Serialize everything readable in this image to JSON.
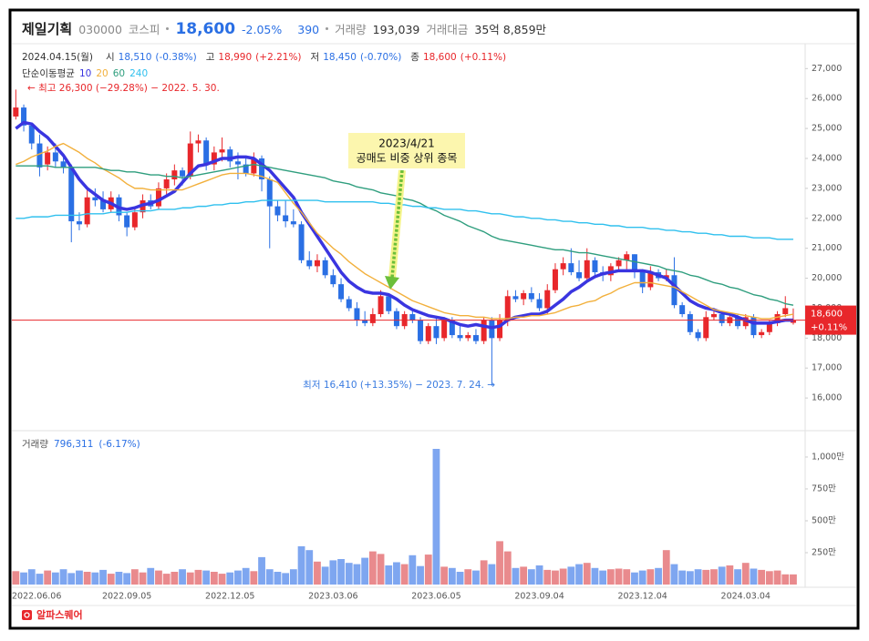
{
  "header": {
    "name": "제일기획",
    "code": "030000",
    "market": "코스피",
    "price": "18,600",
    "change_pct": "-2.05%",
    "change": "390",
    "volume_label": "거래량",
    "volume": "193,039",
    "amount_label": "거래대금",
    "amount": "35억 8,859만"
  },
  "info": {
    "date": "2024.04.15(월)",
    "items": [
      {
        "label": "시",
        "value": "18,510",
        "change": "(-0.38%)",
        "color": "#2a6fe4"
      },
      {
        "label": "고",
        "value": "18,990",
        "change": "(+2.21%)",
        "color": "#e8272b"
      },
      {
        "label": "저",
        "value": "18,450",
        "change": "(-0.70%)",
        "color": "#2a6fe4"
      },
      {
        "label": "종",
        "value": "18,600",
        "change": "(+0.11%)",
        "color": "#e8272b"
      }
    ]
  },
  "footer": {
    "brand": "알파스퀘어"
  },
  "chart_data": [
    {
      "type": "candlestick",
      "categories": [
        null,
        "2022.06.06",
        null,
        null,
        null,
        null,
        null,
        null,
        null,
        null,
        null,
        null,
        null,
        null,
        "2022.09.05",
        null,
        null,
        null,
        null,
        null,
        null,
        null,
        null,
        null,
        null,
        null,
        null,
        "2022.12.05",
        null,
        null,
        null,
        null,
        null,
        null,
        null,
        null,
        null,
        null,
        null,
        null,
        "2023.03.06",
        null,
        null,
        null,
        null,
        null,
        null,
        null,
        null,
        null,
        null,
        null,
        null,
        "2023.06.05",
        null,
        null,
        null,
        null,
        null,
        null,
        null,
        null,
        null,
        null,
        null,
        null,
        "2023.09.04",
        null,
        null,
        null,
        null,
        null,
        null,
        null,
        null,
        null,
        null,
        null,
        null,
        "2023.12.04",
        null,
        null,
        null,
        null,
        null,
        null,
        null,
        null,
        null,
        null,
        null,
        null,
        "2024.03.04",
        null,
        null,
        null,
        null,
        null,
        null
      ],
      "open": [
        25400,
        25700,
        25100,
        24500,
        23800,
        24200,
        23900,
        23700,
        21900,
        21800,
        22700,
        22600,
        22300,
        22700,
        22100,
        21700,
        22200,
        22600,
        22400,
        23000,
        23300,
        23600,
        23400,
        24500,
        24600,
        23800,
        24200,
        24300,
        23900,
        23800,
        23500,
        24000,
        23300,
        22400,
        22100,
        21900,
        21800,
        20600,
        20400,
        20600,
        20100,
        19800,
        19300,
        19000,
        18600,
        18500,
        18800,
        19400,
        18900,
        18400,
        18800,
        18600,
        17900,
        18400,
        18000,
        18600,
        18100,
        18000,
        18100,
        17900,
        18600,
        18000,
        18600,
        19400,
        19300,
        19500,
        19300,
        19000,
        19600,
        20300,
        20500,
        20200,
        20000,
        20600,
        20200,
        20100,
        20400,
        20600,
        20800,
        20200,
        19700,
        20200,
        20000,
        20100,
        19100,
        18800,
        18200,
        18000,
        18700,
        18800,
        18500,
        18700,
        18400,
        18700,
        18100,
        18200,
        18500,
        18800,
        18510
      ],
      "high": [
        26300,
        25800,
        25200,
        24800,
        24400,
        24500,
        24100,
        23800,
        22200,
        23000,
        23000,
        22900,
        22900,
        22800,
        22200,
        22300,
        22800,
        22800,
        23200,
        23500,
        23800,
        23700,
        24900,
        24800,
        24700,
        24400,
        24700,
        24400,
        24200,
        24000,
        24200,
        24100,
        23400,
        22600,
        22600,
        22300,
        21900,
        20900,
        20800,
        20700,
        20300,
        20000,
        19400,
        19200,
        18900,
        19000,
        19600,
        19500,
        19000,
        18900,
        18900,
        18700,
        18500,
        18700,
        18700,
        18700,
        18400,
        18200,
        18300,
        18700,
        18700,
        18800,
        19600,
        19600,
        19600,
        19700,
        19500,
        19800,
        20500,
        20700,
        21000,
        20600,
        21000,
        20700,
        20400,
        20500,
        20700,
        20900,
        20800,
        20300,
        20400,
        20300,
        20300,
        20700,
        19200,
        18900,
        18300,
        18900,
        19000,
        18900,
        18800,
        18800,
        18800,
        18800,
        18300,
        18600,
        18900,
        19400,
        18990
      ],
      "low": [
        25300,
        24900,
        24300,
        23400,
        23600,
        23700,
        23500,
        21200,
        21600,
        21700,
        22400,
        22200,
        22200,
        21900,
        21400,
        21600,
        22000,
        22300,
        22300,
        22700,
        23100,
        23100,
        23300,
        24200,
        23600,
        23600,
        23900,
        23700,
        23300,
        23400,
        23400,
        22900,
        21000,
        21900,
        21700,
        21700,
        20500,
        20300,
        20200,
        20000,
        19700,
        19200,
        18900,
        18400,
        18400,
        18400,
        18700,
        18800,
        18300,
        18300,
        18500,
        17800,
        17800,
        17800,
        17900,
        18000,
        17900,
        17900,
        17800,
        17800,
        16410,
        17900,
        18400,
        19200,
        19100,
        19200,
        18900,
        18800,
        19500,
        20100,
        20100,
        19900,
        19900,
        20000,
        19900,
        19900,
        20200,
        20300,
        20000,
        19500,
        19600,
        19900,
        19900,
        19000,
        18700,
        18100,
        17900,
        17900,
        18600,
        18400,
        18400,
        18300,
        18300,
        18000,
        18000,
        18100,
        18400,
        18700,
        18450
      ],
      "close": [
        25700,
        25100,
        24500,
        23700,
        24200,
        23900,
        23700,
        21900,
        21800,
        22700,
        22600,
        22300,
        22700,
        22100,
        21700,
        22200,
        22600,
        22400,
        23000,
        23300,
        23600,
        23400,
        24500,
        24600,
        23800,
        24200,
        24300,
        23900,
        23800,
        23500,
        24000,
        23300,
        22400,
        22100,
        21900,
        21800,
        20600,
        20400,
        20600,
        20100,
        19800,
        19300,
        19000,
        18600,
        18500,
        18800,
        19400,
        18900,
        18400,
        18800,
        18600,
        17900,
        18400,
        18000,
        18600,
        18100,
        18000,
        18100,
        17900,
        18600,
        18000,
        18600,
        19400,
        19300,
        19500,
        19300,
        19000,
        19600,
        20300,
        20500,
        20200,
        20000,
        20600,
        20200,
        20100,
        20400,
        20600,
        20800,
        20200,
        19700,
        20200,
        20000,
        20100,
        19100,
        18800,
        18200,
        18000,
        18700,
        18800,
        18500,
        18700,
        18400,
        18700,
        18100,
        18200,
        18500,
        18800,
        19000,
        18600
      ],
      "up_color": "#e8272b",
      "down_color": "#2a6fe4",
      "ylim": [
        15000,
        27770
      ],
      "yticks": [
        {
          "value": 16000,
          "label": "16,000"
        },
        {
          "value": 17000,
          "label": "17,000"
        },
        {
          "value": 18000,
          "label": "18,000"
        },
        {
          "value": 19000,
          "label": "19,000"
        },
        {
          "value": 20000,
          "label": "20,000"
        },
        {
          "value": 21000,
          "label": "21,000"
        },
        {
          "value": 22000,
          "label": "22,000"
        },
        {
          "value": 23000,
          "label": "23,000"
        },
        {
          "value": 24000,
          "label": "24,000"
        },
        {
          "value": 25000,
          "label": "25,000"
        },
        {
          "value": 26000,
          "label": "26,000"
        },
        {
          "value": 27000,
          "label": "27,000"
        }
      ],
      "series_label": "단순이동평균",
      "series": [
        {
          "name": "10",
          "color": "#3a35e0",
          "values": [
            25000,
            25200,
            25150,
            24900,
            24700,
            24400,
            24100,
            23700,
            23300,
            23000,
            22800,
            22600,
            22500,
            22350,
            22300,
            22350,
            22450,
            22500,
            22600,
            22750,
            22900,
            23200,
            23500,
            23750,
            23800,
            23900,
            24000,
            24000,
            24050,
            24050,
            24000,
            23800,
            23600,
            23300,
            23000,
            22700,
            22200,
            21800,
            21400,
            21000,
            20600,
            20200,
            19900,
            19700,
            19550,
            19500,
            19500,
            19450,
            19300,
            19100,
            18950,
            18850,
            18750,
            18700,
            18650,
            18550,
            18450,
            18400,
            18450,
            18400,
            18350,
            18400,
            18600,
            18700,
            18750,
            18800,
            18800,
            18900,
            19100,
            19300,
            19550,
            19700,
            19900,
            20050,
            20150,
            20200,
            20250,
            20250,
            20250,
            20250,
            20200,
            20100,
            20000,
            19750,
            19500,
            19250,
            19100,
            19000,
            18950,
            18850,
            18800,
            18700,
            18600,
            18500,
            18500,
            18500,
            18550,
            18600,
            18600
          ]
        },
        {
          "name": "20",
          "color": "#f2b03c",
          "values": [
            23800,
            23900,
            24050,
            24150,
            24250,
            24400,
            24500,
            24350,
            24200,
            24000,
            23850,
            23650,
            23500,
            23350,
            23150,
            23000,
            23000,
            22950,
            22950,
            22950,
            22950,
            22950,
            23050,
            23150,
            23250,
            23350,
            23450,
            23500,
            23500,
            23500,
            23450,
            23400,
            23300,
            23200,
            22850,
            22500,
            22200,
            21850,
            21500,
            21250,
            21000,
            20800,
            20550,
            20350,
            20150,
            20000,
            19850,
            19700,
            19550,
            19400,
            19250,
            19150,
            19050,
            18950,
            18850,
            18800,
            18750,
            18750,
            18700,
            18700,
            18650,
            18650,
            18650,
            18700,
            18700,
            18750,
            18750,
            18800,
            18850,
            18950,
            19050,
            19100,
            19200,
            19250,
            19400,
            19500,
            19650,
            19750,
            19850,
            19850,
            19850,
            19800,
            19750,
            19700,
            19550,
            19400,
            19250,
            19100,
            18950,
            18900,
            18850,
            18800,
            18750,
            18700,
            18650,
            18650,
            18700,
            18750,
            18800
          ]
        },
        {
          "name": "60",
          "color": "#2f9e7e",
          "values": [
            23750,
            23750,
            23750,
            23750,
            23750,
            23700,
            23700,
            23700,
            23700,
            23700,
            23700,
            23650,
            23600,
            23600,
            23550,
            23550,
            23500,
            23450,
            23450,
            23400,
            23400,
            23350,
            23400,
            23450,
            23500,
            23550,
            23600,
            23650,
            23700,
            23750,
            23800,
            23750,
            23700,
            23650,
            23600,
            23550,
            23500,
            23450,
            23400,
            23350,
            23250,
            23200,
            23150,
            23050,
            23000,
            22950,
            22850,
            22800,
            22750,
            22650,
            22600,
            22500,
            22350,
            22250,
            22100,
            22000,
            21900,
            21750,
            21650,
            21550,
            21400,
            21300,
            21250,
            21200,
            21150,
            21100,
            21050,
            21000,
            20950,
            20950,
            20900,
            20850,
            20850,
            20800,
            20750,
            20700,
            20650,
            20600,
            20550,
            20500,
            20450,
            20400,
            20300,
            20250,
            20200,
            20100,
            20050,
            19950,
            19850,
            19800,
            19700,
            19650,
            19550,
            19450,
            19400,
            19300,
            19250,
            19150,
            19100
          ]
        },
        {
          "name": "240",
          "color": "#30c0ee",
          "values": [
            22000,
            22000,
            22050,
            22050,
            22050,
            22100,
            22100,
            22100,
            22100,
            22150,
            22150,
            22150,
            22200,
            22200,
            22200,
            22250,
            22250,
            22250,
            22300,
            22300,
            22300,
            22350,
            22350,
            22400,
            22400,
            22450,
            22450,
            22500,
            22500,
            22550,
            22550,
            22600,
            22600,
            22600,
            22600,
            22600,
            22600,
            22600,
            22600,
            22550,
            22550,
            22550,
            22550,
            22550,
            22550,
            22550,
            22500,
            22500,
            22450,
            22450,
            22400,
            22400,
            22350,
            22350,
            22300,
            22300,
            22300,
            22250,
            22250,
            22200,
            22150,
            22150,
            22100,
            22050,
            22050,
            22000,
            22000,
            21950,
            21950,
            21900,
            21900,
            21850,
            21850,
            21800,
            21800,
            21750,
            21750,
            21700,
            21700,
            21700,
            21650,
            21650,
            21600,
            21600,
            21550,
            21550,
            21500,
            21500,
            21450,
            21450,
            21400,
            21400,
            21400,
            21350,
            21350,
            21350,
            21300,
            21300,
            21300
          ]
        }
      ],
      "high_note": "← 최고 26,300 (−29.28%) − 2022. 5. 30.",
      "low_note": "최저 16,410 (+13.35%) − 2023. 7. 24. →",
      "callout": [
        "2023/4/21",
        "공매도 비중 상위 종목"
      ],
      "price_tag": [
        "18,600",
        "+0.11%"
      ]
    },
    {
      "type": "bar",
      "label": "거래량",
      "last_value_label": "796,311",
      "change_label": "(-6.17%)",
      "values": [
        105,
        95,
        120,
        85,
        110,
        95,
        120,
        90,
        110,
        100,
        95,
        115,
        85,
        100,
        90,
        120,
        95,
        130,
        110,
        85,
        100,
        120,
        95,
        115,
        110,
        100,
        85,
        95,
        110,
        130,
        105,
        215,
        120,
        100,
        90,
        120,
        300,
        270,
        180,
        140,
        190,
        200,
        170,
        160,
        210,
        260,
        240,
        150,
        175,
        160,
        230,
        145,
        235,
        1064,
        140,
        130,
        100,
        120,
        110,
        190,
        160,
        340,
        260,
        130,
        140,
        120,
        150,
        115,
        110,
        125,
        140,
        160,
        170,
        130,
        110,
        120,
        125,
        120,
        95,
        110,
        120,
        130,
        270,
        160,
        110,
        105,
        120,
        115,
        120,
        140,
        150,
        120,
        170,
        125,
        115,
        105,
        110,
        80,
        79.6311
      ],
      "up_color": "#e98a8d",
      "down_color": "#7ea6f0",
      "ylim": [
        0,
        1171
      ],
      "yticks": [
        {
          "value": 250,
          "label": "250만"
        },
        {
          "value": 500,
          "label": "500만"
        },
        {
          "value": 750,
          "label": "750만"
        },
        {
          "value": 1000,
          "label": "1,000만"
        }
      ]
    }
  ]
}
